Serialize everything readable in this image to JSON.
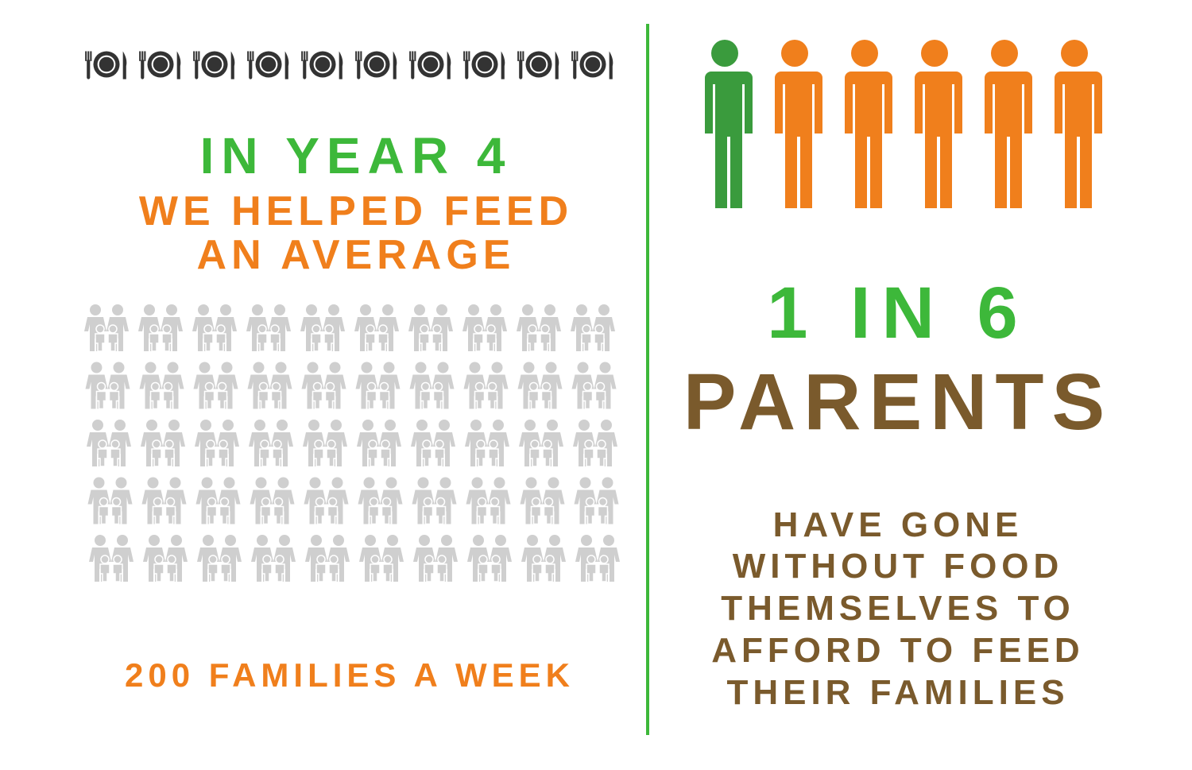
{
  "left_panel": {
    "heading": "IN YEAR 4",
    "subheading_lines": [
      "WE HELPED FEED",
      "AN AVERAGE"
    ],
    "footer": "200 FAMILIES A WEEK"
  },
  "right_panel": {
    "stat": "1 IN 6",
    "subject": "PARENTS",
    "description_lines": [
      "HAVE GONE",
      "WITHOUT FOOD",
      "THEMSELVES TO",
      "AFFORD TO FEED",
      "THEIR FAMILIES"
    ]
  }
}
